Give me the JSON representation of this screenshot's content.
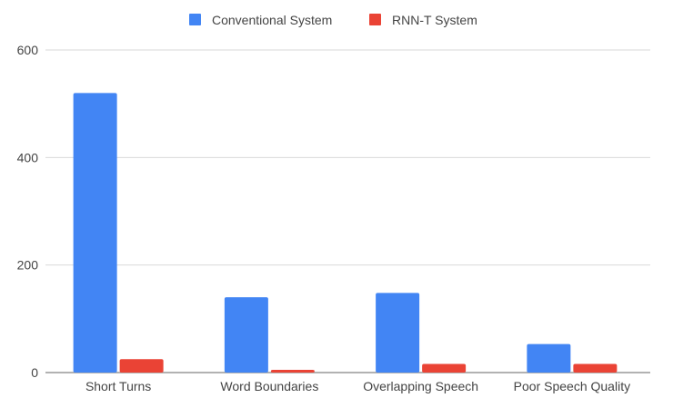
{
  "chart_data": {
    "type": "bar",
    "title": "",
    "xlabel": "",
    "ylabel": "",
    "categories": [
      "Short Turns",
      "Word Boundaries",
      "Overlapping Speech",
      "Poor Speech Quality"
    ],
    "series": [
      {
        "name": "Conventional System",
        "color": "#4285f4",
        "values": [
          520,
          140,
          148,
          53
        ]
      },
      {
        "name": "RNN-T System",
        "color": "#ea4335",
        "values": [
          25,
          5,
          16,
          16
        ]
      }
    ],
    "ylim": [
      0,
      600
    ],
    "yticks": [
      0,
      200,
      400,
      600
    ],
    "grid": true,
    "legend_position": "top"
  }
}
